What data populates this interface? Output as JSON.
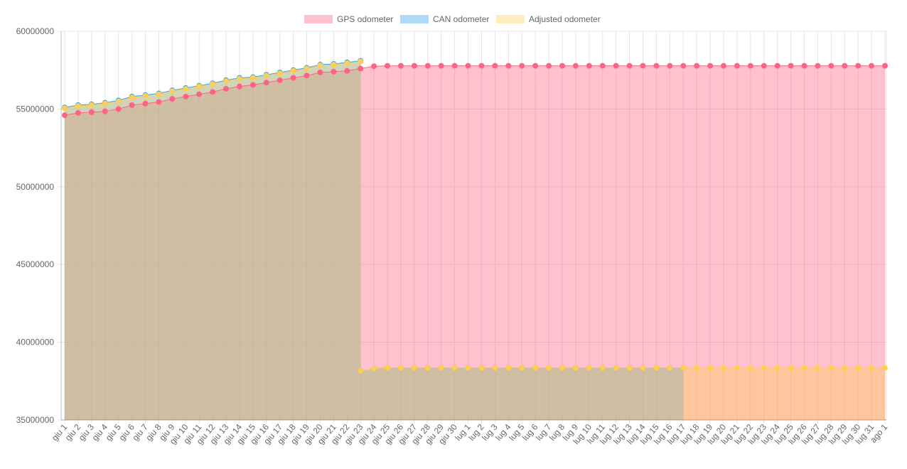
{
  "chart_data": {
    "type": "line",
    "x_labels": [
      "giu 1",
      "giu 2",
      "giu 3",
      "giu 4",
      "giu 5",
      "giu 6",
      "giu 7",
      "giu 8",
      "giu 9",
      "giu 10",
      "giu 11",
      "giu 12",
      "giu 13",
      "giu 14",
      "giu 15",
      "giu 16",
      "giu 17",
      "giu 18",
      "giu 19",
      "giu 20",
      "giu 21",
      "giu 22",
      "giu 23",
      "giu 24",
      "giu 25",
      "giu 26",
      "giu 27",
      "giu 28",
      "giu 29",
      "giu 30",
      "lug 1",
      "lug 2",
      "lug 3",
      "lug 4",
      "lug 5",
      "lug 6",
      "lug 7",
      "lug 8",
      "lug 9",
      "lug 10",
      "lug 11",
      "lug 12",
      "lug 13",
      "lug 14",
      "lug 15",
      "lug 16",
      "lug 17",
      "lug 18",
      "lug 19",
      "lug 20",
      "lug 21",
      "lug 22",
      "lug 23",
      "lug 24",
      "lug 25",
      "lug 26",
      "lug 27",
      "lug 28",
      "lug 29",
      "lug 30",
      "lug 31",
      "ago 1"
    ],
    "y_ticks": [
      35000000,
      40000000,
      45000000,
      50000000,
      55000000,
      60000000
    ],
    "ylim": [
      35000000,
      60000000
    ],
    "legend_position": "top",
    "grid": true,
    "series": [
      {
        "name": "GPS odometer",
        "line_color": "#ff6384",
        "fill_color": "rgba(255,99,132,0.4)",
        "points": [
          [
            "giu 1",
            54600000
          ],
          [
            "giu 2",
            54750000
          ],
          [
            "giu 3",
            54800000
          ],
          [
            "giu 4",
            54850000
          ],
          [
            "giu 5",
            55000000
          ],
          [
            "giu 6",
            55250000
          ],
          [
            "giu 7",
            55350000
          ],
          [
            "giu 8",
            55450000
          ],
          [
            "giu 9",
            55650000
          ],
          [
            "giu 10",
            55800000
          ],
          [
            "giu 11",
            55950000
          ],
          [
            "giu 12",
            56100000
          ],
          [
            "giu 13",
            56300000
          ],
          [
            "giu 14",
            56450000
          ],
          [
            "giu 15",
            56550000
          ],
          [
            "giu 16",
            56700000
          ],
          [
            "giu 17",
            56850000
          ],
          [
            "giu 18",
            57000000
          ],
          [
            "giu 19",
            57150000
          ],
          [
            "giu 20",
            57350000
          ],
          [
            "giu 21",
            57400000
          ],
          [
            "giu 22",
            57450000
          ],
          [
            "giu 23",
            57600000
          ],
          [
            "giu 24",
            57750000
          ],
          [
            "giu 25",
            57780000
          ],
          [
            "giu 26",
            57780000
          ],
          [
            "giu 27",
            57780000
          ],
          [
            "giu 28",
            57780000
          ],
          [
            "giu 29",
            57780000
          ],
          [
            "giu 30",
            57780000
          ],
          [
            "lug 1",
            57780000
          ],
          [
            "lug 2",
            57780000
          ],
          [
            "lug 3",
            57780000
          ],
          [
            "lug 4",
            57780000
          ],
          [
            "lug 5",
            57780000
          ],
          [
            "lug 6",
            57780000
          ],
          [
            "lug 7",
            57780000
          ],
          [
            "lug 8",
            57780000
          ],
          [
            "lug 9",
            57780000
          ],
          [
            "lug 10",
            57780000
          ],
          [
            "lug 11",
            57780000
          ],
          [
            "lug 12",
            57780000
          ],
          [
            "lug 13",
            57780000
          ],
          [
            "lug 14",
            57780000
          ],
          [
            "lug 15",
            57780000
          ],
          [
            "lug 16",
            57780000
          ],
          [
            "lug 17",
            57780000
          ],
          [
            "lug 18",
            57780000
          ],
          [
            "lug 19",
            57780000
          ],
          [
            "lug 20",
            57780000
          ],
          [
            "lug 21",
            57780000
          ],
          [
            "lug 22",
            57780000
          ],
          [
            "lug 23",
            57780000
          ],
          [
            "lug 24",
            57780000
          ],
          [
            "lug 25",
            57780000
          ],
          [
            "lug 26",
            57780000
          ],
          [
            "lug 27",
            57780000
          ],
          [
            "lug 28",
            57780000
          ],
          [
            "lug 29",
            57780000
          ],
          [
            "lug 30",
            57780000
          ],
          [
            "lug 31",
            57780000
          ],
          [
            "ago 1",
            57780000
          ]
        ]
      },
      {
        "name": "CAN odometer",
        "line_color": "#36a2eb",
        "fill_color": "rgba(54,162,235,0.4)",
        "points": [
          [
            "giu 1",
            55100000
          ],
          [
            "giu 2",
            55250000
          ],
          [
            "giu 3",
            55300000
          ],
          [
            "giu 4",
            55400000
          ],
          [
            "giu 5",
            55550000
          ],
          [
            "giu 6",
            55800000
          ],
          [
            "giu 7",
            55900000
          ],
          [
            "giu 8",
            56000000
          ],
          [
            "giu 9",
            56200000
          ],
          [
            "giu 10",
            56350000
          ],
          [
            "giu 11",
            56500000
          ],
          [
            "giu 12",
            56650000
          ],
          [
            "giu 13",
            56850000
          ],
          [
            "giu 14",
            57000000
          ],
          [
            "giu 15",
            57050000
          ],
          [
            "giu 16",
            57200000
          ],
          [
            "giu 17",
            57350000
          ],
          [
            "giu 18",
            57500000
          ],
          [
            "giu 19",
            57650000
          ],
          [
            "giu 20",
            57850000
          ],
          [
            "giu 21",
            57900000
          ],
          [
            "giu 22",
            58000000
          ],
          [
            "giu 23",
            58100000
          ],
          [
            "giu 23",
            38150000
          ],
          [
            "giu 24",
            38300000
          ],
          [
            "giu 25",
            38350000
          ],
          [
            "giu 26",
            38350000
          ],
          [
            "giu 27",
            38350000
          ],
          [
            "giu 28",
            38350000
          ],
          [
            "giu 29",
            38350000
          ],
          [
            "giu 30",
            38350000
          ],
          [
            "lug 1",
            38350000
          ],
          [
            "lug 2",
            38350000
          ],
          [
            "lug 3",
            38350000
          ],
          [
            "lug 4",
            38350000
          ],
          [
            "lug 5",
            38350000
          ],
          [
            "lug 6",
            38350000
          ],
          [
            "lug 7",
            38350000
          ],
          [
            "lug 8",
            38350000
          ],
          [
            "lug 9",
            38350000
          ],
          [
            "lug 10",
            38350000
          ],
          [
            "lug 11",
            38350000
          ],
          [
            "lug 12",
            38350000
          ],
          [
            "lug 13",
            38350000
          ],
          [
            "lug 14",
            38350000
          ],
          [
            "lug 15",
            38350000
          ],
          [
            "lug 16",
            38350000
          ],
          [
            "lug 17",
            38350000
          ]
        ]
      },
      {
        "name": "Adjusted odometer",
        "line_color": "#ffce56",
        "fill_color": "rgba(255,206,86,0.4)",
        "points": [
          [
            "giu 1",
            55050000
          ],
          [
            "giu 2",
            55200000
          ],
          [
            "giu 3",
            55250000
          ],
          [
            "giu 4",
            55350000
          ],
          [
            "giu 5",
            55500000
          ],
          [
            "giu 6",
            55750000
          ],
          [
            "giu 7",
            55850000
          ],
          [
            "giu 8",
            55950000
          ],
          [
            "giu 9",
            56150000
          ],
          [
            "giu 10",
            56300000
          ],
          [
            "giu 11",
            56450000
          ],
          [
            "giu 12",
            56600000
          ],
          [
            "giu 13",
            56800000
          ],
          [
            "giu 14",
            56950000
          ],
          [
            "giu 15",
            57000000
          ],
          [
            "giu 16",
            57150000
          ],
          [
            "giu 17",
            57300000
          ],
          [
            "giu 18",
            57450000
          ],
          [
            "giu 19",
            57600000
          ],
          [
            "giu 20",
            57800000
          ],
          [
            "giu 21",
            57850000
          ],
          [
            "giu 22",
            57950000
          ],
          [
            "giu 23",
            58050000
          ],
          [
            "giu 23",
            38150000
          ],
          [
            "giu 24",
            38300000
          ],
          [
            "giu 25",
            38350000
          ],
          [
            "giu 26",
            38350000
          ],
          [
            "giu 27",
            38350000
          ],
          [
            "giu 28",
            38350000
          ],
          [
            "giu 29",
            38350000
          ],
          [
            "giu 30",
            38350000
          ],
          [
            "lug 1",
            38350000
          ],
          [
            "lug 2",
            38350000
          ],
          [
            "lug 3",
            38350000
          ],
          [
            "lug 4",
            38350000
          ],
          [
            "lug 5",
            38350000
          ],
          [
            "lug 6",
            38350000
          ],
          [
            "lug 7",
            38350000
          ],
          [
            "lug 8",
            38350000
          ],
          [
            "lug 9",
            38350000
          ],
          [
            "lug 10",
            38350000
          ],
          [
            "lug 11",
            38350000
          ],
          [
            "lug 12",
            38350000
          ],
          [
            "lug 13",
            38350000
          ],
          [
            "lug 14",
            38350000
          ],
          [
            "lug 15",
            38350000
          ],
          [
            "lug 16",
            38350000
          ],
          [
            "lug 17",
            38350000
          ],
          [
            "lug 18",
            38350000
          ],
          [
            "lug 19",
            38350000
          ],
          [
            "lug 20",
            38350000
          ],
          [
            "lug 21",
            38350000
          ],
          [
            "lug 22",
            38350000
          ],
          [
            "lug 23",
            38350000
          ],
          [
            "lug 24",
            38350000
          ],
          [
            "lug 25",
            38350000
          ],
          [
            "lug 26",
            38350000
          ],
          [
            "lug 27",
            38350000
          ],
          [
            "lug 28",
            38350000
          ],
          [
            "lug 29",
            38350000
          ],
          [
            "lug 30",
            38350000
          ],
          [
            "lug 31",
            38350000
          ],
          [
            "ago 1",
            38350000
          ]
        ]
      }
    ]
  }
}
